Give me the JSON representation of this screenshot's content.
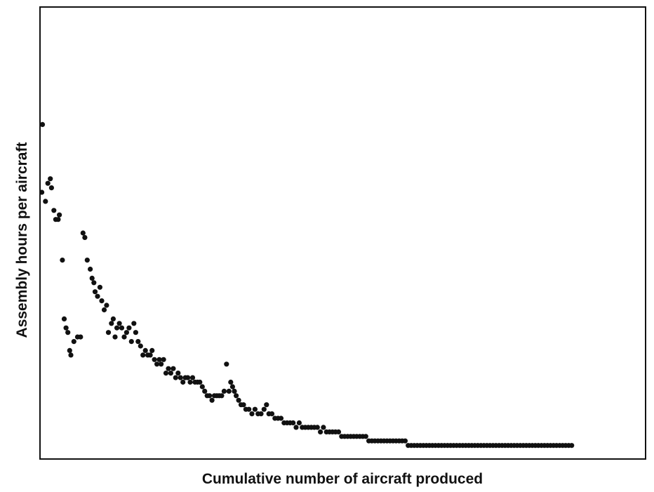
{
  "chart_data": {
    "type": "scatter",
    "title": "",
    "xlabel": "Cumulative number of aircraft produced",
    "ylabel": "Assembly hours per aircraft",
    "xlim": [
      0,
      100
    ],
    "ylim": [
      0,
      100
    ],
    "grid": false,
    "legend": "none",
    "x_tick_labels": [],
    "y_tick_labels": [],
    "colors": {
      "points": "#111111",
      "frame": "#111111",
      "background": "#ffffff"
    },
    "series": [
      {
        "points": [
          [
            0.4,
            74
          ],
          [
            0.3,
            59
          ],
          [
            0.9,
            57
          ],
          [
            1.3,
            61
          ],
          [
            1.7,
            62
          ],
          [
            1.9,
            60
          ],
          [
            2.3,
            55
          ],
          [
            2.6,
            53
          ],
          [
            3.0,
            53
          ],
          [
            3.2,
            54
          ],
          [
            3.7,
            44
          ],
          [
            4.0,
            31
          ],
          [
            4.3,
            29
          ],
          [
            4.6,
            28
          ],
          [
            4.9,
            24
          ],
          [
            5.1,
            23
          ],
          [
            5.6,
            26
          ],
          [
            6.2,
            27
          ],
          [
            6.7,
            27
          ],
          [
            7.1,
            50
          ],
          [
            7.4,
            49
          ],
          [
            7.8,
            44
          ],
          [
            8.3,
            42
          ],
          [
            8.6,
            40
          ],
          [
            8.9,
            39
          ],
          [
            9.1,
            37
          ],
          [
            9.5,
            36
          ],
          [
            9.9,
            38
          ],
          [
            10.2,
            35
          ],
          [
            10.6,
            33
          ],
          [
            11.0,
            34
          ],
          [
            11.3,
            28
          ],
          [
            11.8,
            30
          ],
          [
            12.1,
            31
          ],
          [
            12.4,
            27
          ],
          [
            12.7,
            29
          ],
          [
            13.1,
            30
          ],
          [
            13.5,
            29
          ],
          [
            13.9,
            27
          ],
          [
            14.3,
            28
          ],
          [
            14.7,
            29
          ],
          [
            15.1,
            26
          ],
          [
            15.5,
            30
          ],
          [
            15.8,
            28
          ],
          [
            16.2,
            26
          ],
          [
            16.6,
            25
          ],
          [
            17.0,
            23
          ],
          [
            17.4,
            24
          ],
          [
            17.8,
            23
          ],
          [
            18.2,
            23
          ],
          [
            18.5,
            24
          ],
          [
            18.9,
            22
          ],
          [
            19.3,
            21
          ],
          [
            19.7,
            22
          ],
          [
            20.0,
            21
          ],
          [
            20.4,
            22
          ],
          [
            20.8,
            19
          ],
          [
            21.2,
            20
          ],
          [
            21.6,
            19
          ],
          [
            22.0,
            20
          ],
          [
            22.4,
            18
          ],
          [
            22.8,
            19
          ],
          [
            23.2,
            18
          ],
          [
            23.6,
            17
          ],
          [
            24.0,
            18
          ],
          [
            24.4,
            18
          ],
          [
            24.8,
            17
          ],
          [
            25.2,
            18
          ],
          [
            25.6,
            17
          ],
          [
            26.0,
            17
          ],
          [
            26.4,
            17
          ],
          [
            26.8,
            16
          ],
          [
            27.2,
            15
          ],
          [
            27.6,
            14
          ],
          [
            28.0,
            14
          ],
          [
            28.4,
            13
          ],
          [
            28.8,
            14
          ],
          [
            29.2,
            14
          ],
          [
            29.6,
            14
          ],
          [
            30.0,
            14
          ],
          [
            30.4,
            15
          ],
          [
            30.8,
            21
          ],
          [
            31.2,
            15
          ],
          [
            31.5,
            17
          ],
          [
            31.8,
            16
          ],
          [
            32.1,
            15
          ],
          [
            32.4,
            14
          ],
          [
            32.8,
            13
          ],
          [
            33.2,
            12
          ],
          [
            33.6,
            12
          ],
          [
            34.0,
            11
          ],
          [
            34.5,
            11
          ],
          [
            35.0,
            10
          ],
          [
            35.5,
            11
          ],
          [
            36.0,
            10
          ],
          [
            36.5,
            10
          ],
          [
            37.0,
            11
          ],
          [
            37.4,
            12
          ],
          [
            37.8,
            10
          ],
          [
            38.3,
            10
          ],
          [
            38.8,
            9
          ],
          [
            39.3,
            9
          ],
          [
            39.8,
            9
          ],
          [
            40.3,
            8
          ],
          [
            40.8,
            8
          ],
          [
            41.3,
            8
          ],
          [
            41.8,
            8
          ],
          [
            42.3,
            7
          ],
          [
            42.8,
            8
          ],
          [
            43.3,
            7
          ],
          [
            43.8,
            7
          ],
          [
            44.3,
            7
          ],
          [
            44.8,
            7
          ],
          [
            45.3,
            7
          ],
          [
            45.8,
            7
          ],
          [
            46.3,
            6
          ],
          [
            46.8,
            7
          ],
          [
            47.3,
            6
          ],
          [
            47.8,
            6
          ],
          [
            48.3,
            6
          ],
          [
            48.8,
            6
          ],
          [
            49.3,
            6
          ],
          [
            49.8,
            5
          ],
          [
            50.3,
            5
          ],
          [
            50.8,
            5
          ],
          [
            51.3,
            5
          ],
          [
            51.8,
            5
          ],
          [
            52.3,
            5
          ],
          [
            52.8,
            5
          ],
          [
            53.3,
            5
          ],
          [
            53.8,
            5
          ],
          [
            54.3,
            4
          ],
          [
            54.8,
            4
          ],
          [
            55.3,
            4
          ],
          [
            55.8,
            4
          ],
          [
            56.3,
            4
          ],
          [
            56.8,
            4
          ],
          [
            57.3,
            4
          ],
          [
            57.8,
            4
          ],
          [
            58.3,
            4
          ],
          [
            58.8,
            4
          ],
          [
            59.3,
            4
          ],
          [
            59.8,
            4
          ],
          [
            60.3,
            4
          ],
          [
            60.8,
            3
          ],
          [
            61.3,
            3
          ],
          [
            61.8,
            3
          ],
          [
            62.3,
            3
          ],
          [
            62.8,
            3
          ],
          [
            63.3,
            3
          ],
          [
            63.8,
            3
          ],
          [
            64.3,
            3
          ],
          [
            64.8,
            3
          ],
          [
            65.3,
            3
          ],
          [
            65.8,
            3
          ],
          [
            66.3,
            3
          ],
          [
            66.8,
            3
          ],
          [
            67.3,
            3
          ],
          [
            67.8,
            3
          ],
          [
            68.3,
            3
          ],
          [
            68.8,
            3
          ],
          [
            69.3,
            3
          ],
          [
            69.8,
            3
          ],
          [
            70.3,
            3
          ],
          [
            70.8,
            3
          ],
          [
            71.3,
            3
          ],
          [
            71.8,
            3
          ],
          [
            72.3,
            3
          ],
          [
            72.8,
            3
          ],
          [
            73.3,
            3
          ],
          [
            73.8,
            3
          ],
          [
            74.3,
            3
          ],
          [
            74.8,
            3
          ],
          [
            75.3,
            3
          ],
          [
            75.8,
            3
          ],
          [
            76.3,
            3
          ],
          [
            76.8,
            3
          ],
          [
            77.3,
            3
          ],
          [
            77.8,
            3
          ],
          [
            78.3,
            3
          ],
          [
            78.8,
            3
          ],
          [
            79.3,
            3
          ],
          [
            79.8,
            3
          ],
          [
            80.3,
            3
          ],
          [
            80.8,
            3
          ],
          [
            81.3,
            3
          ],
          [
            81.8,
            3
          ],
          [
            82.3,
            3
          ],
          [
            82.8,
            3
          ],
          [
            83.3,
            3
          ],
          [
            83.8,
            3
          ],
          [
            84.3,
            3
          ],
          [
            84.8,
            3
          ],
          [
            85.3,
            3
          ],
          [
            85.8,
            3
          ],
          [
            86.3,
            3
          ],
          [
            86.8,
            3
          ],
          [
            87.3,
            3
          ],
          [
            87.8,
            3
          ]
        ]
      }
    ]
  }
}
